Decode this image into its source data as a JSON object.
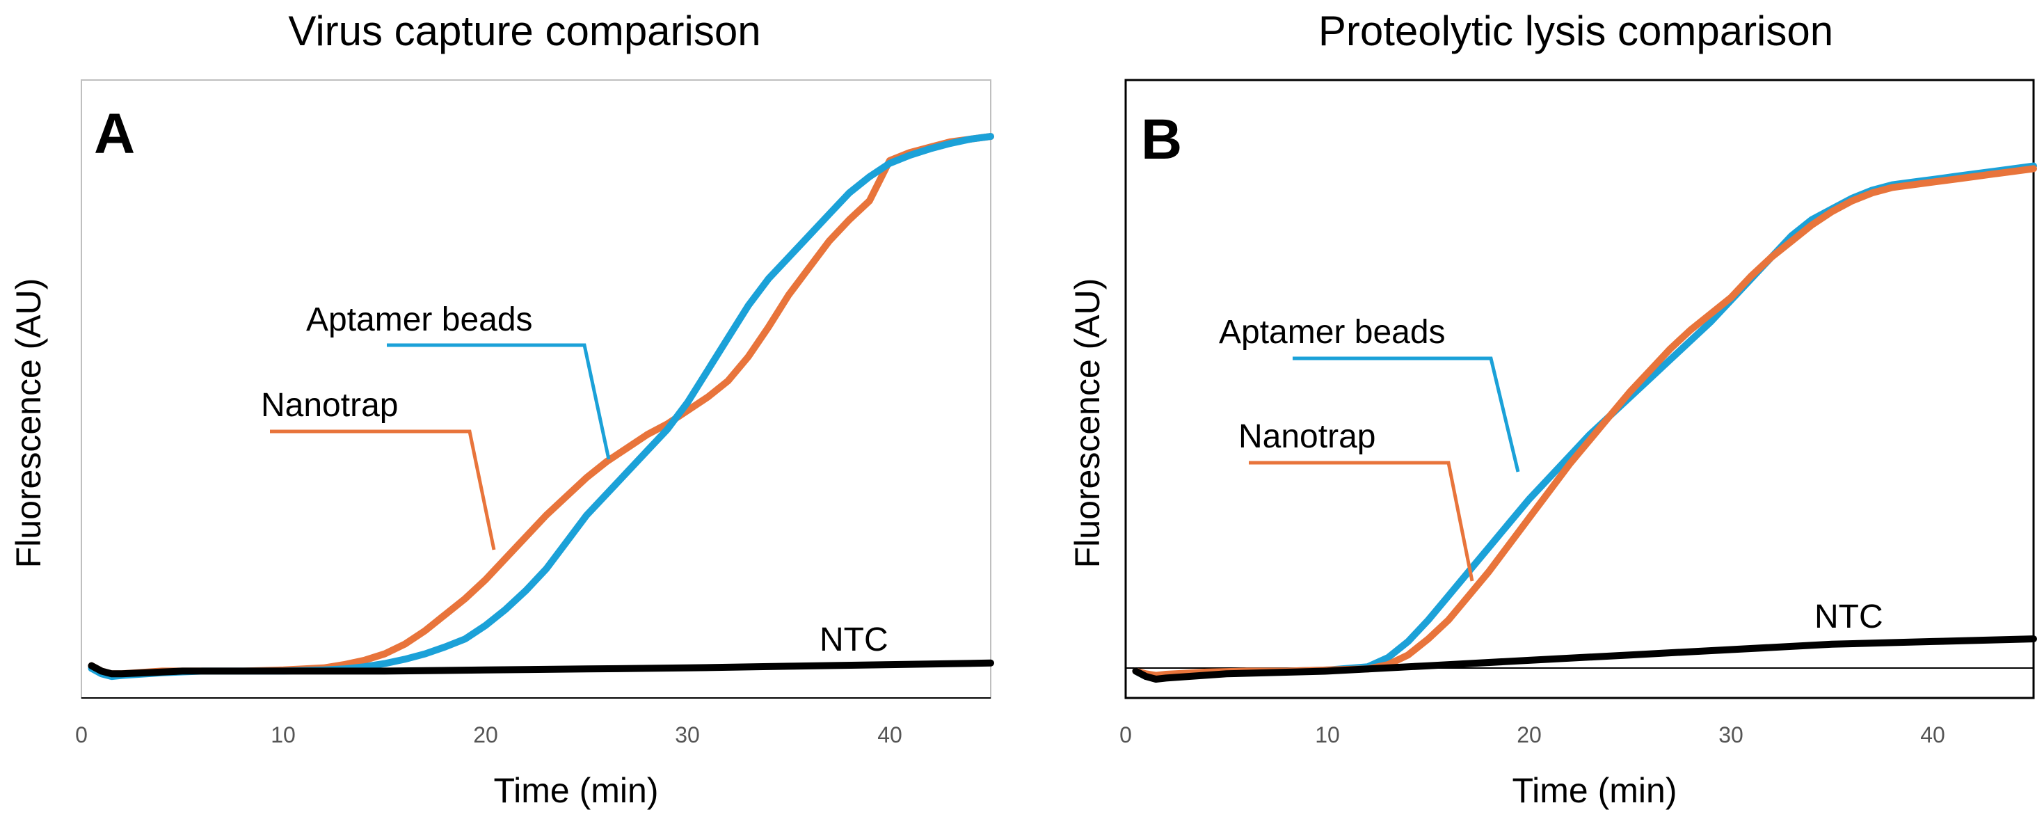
{
  "chart_data": [
    {
      "type": "line",
      "panel_label": "A",
      "title": "Virus capture comparison",
      "xlabel": "Time (min)",
      "ylabel": "Fluorescence (AU)",
      "xlim": [
        0,
        45
      ],
      "ylim": [
        -0.05,
        1.1
      ],
      "xticks": [
        0,
        10,
        20,
        30,
        40
      ],
      "xtick_labels": [
        "0",
        "10",
        "20",
        "30",
        "40"
      ],
      "grid": false,
      "series": [
        {
          "name": "Nanotrap",
          "color": "#E8743B",
          "x": [
            0.5,
            1,
            1.5,
            2,
            4,
            6,
            8,
            10,
            12,
            13,
            14,
            15,
            16,
            17,
            18,
            19,
            20,
            21,
            22,
            23,
            24,
            25,
            26,
            27,
            28,
            29,
            30,
            31,
            32,
            33,
            34,
            35,
            36,
            37,
            38,
            39,
            40,
            41,
            42,
            43,
            44,
            45
          ],
          "y": [
            0.01,
            0.0,
            -0.005,
            -0.005,
            0.0,
            0.0,
            0.0,
            0.002,
            0.006,
            0.012,
            0.02,
            0.032,
            0.05,
            0.075,
            0.105,
            0.135,
            0.17,
            0.21,
            0.25,
            0.29,
            0.325,
            0.36,
            0.39,
            0.415,
            0.44,
            0.46,
            0.485,
            0.51,
            0.54,
            0.585,
            0.64,
            0.7,
            0.75,
            0.8,
            0.84,
            0.875,
            0.95,
            0.965,
            0.975,
            0.985,
            0.99,
            0.995
          ]
        },
        {
          "name": "Aptamer beads",
          "color": "#1BA1D8",
          "x": [
            0.5,
            1,
            1.5,
            2,
            4,
            6,
            8,
            10,
            12,
            13,
            14,
            15,
            16,
            17,
            18,
            19,
            20,
            21,
            22,
            23,
            24,
            25,
            26,
            27,
            28,
            29,
            30,
            31,
            32,
            33,
            34,
            35,
            36,
            37,
            38,
            39,
            40,
            41,
            42,
            43,
            44,
            45
          ],
          "y": [
            0.005,
            -0.005,
            -0.01,
            -0.008,
            -0.003,
            0.0,
            0.0,
            0.0,
            0.002,
            0.004,
            0.008,
            0.014,
            0.022,
            0.032,
            0.045,
            0.06,
            0.085,
            0.115,
            0.15,
            0.19,
            0.24,
            0.29,
            0.33,
            0.37,
            0.41,
            0.45,
            0.5,
            0.56,
            0.62,
            0.68,
            0.73,
            0.77,
            0.81,
            0.85,
            0.89,
            0.92,
            0.945,
            0.96,
            0.972,
            0.982,
            0.99,
            0.995
          ]
        },
        {
          "name": "NTC",
          "color": "#000000",
          "x": [
            0.5,
            1,
            1.5,
            2,
            5,
            10,
            15,
            20,
            25,
            30,
            35,
            40,
            45
          ],
          "y": [
            0.01,
            0.0,
            -0.005,
            -0.005,
            0.0,
            0.0,
            0.0,
            0.002,
            0.004,
            0.006,
            0.009,
            0.012,
            0.015
          ]
        }
      ]
    },
    {
      "type": "line",
      "panel_label": "B",
      "title": "Proteolytic lysis comparison",
      "xlabel": "Time (min)",
      "ylabel": "Fluorescence (AU)",
      "xlim": [
        0,
        45
      ],
      "ylim": [
        -0.05,
        1.1
      ],
      "xticks": [
        0,
        10,
        20,
        30,
        40
      ],
      "xtick_labels": [
        "0",
        "10",
        "20",
        "30",
        "40"
      ],
      "grid": false,
      "series": [
        {
          "name": "Aptamer beads",
          "color": "#1BA1D8",
          "x": [
            0.5,
            1,
            1.5,
            2,
            4,
            6,
            8,
            10,
            12,
            13,
            14,
            15,
            16,
            17,
            18,
            19,
            20,
            21,
            22,
            23,
            24,
            25,
            26,
            27,
            28,
            29,
            30,
            31,
            32,
            33,
            34,
            35,
            36,
            37,
            38,
            39,
            40,
            41,
            42,
            43,
            44,
            45
          ],
          "y": [
            0.0,
            -0.01,
            -0.01,
            -0.008,
            -0.003,
            0.0,
            0.0,
            0.002,
            0.008,
            0.025,
            0.055,
            0.095,
            0.14,
            0.185,
            0.23,
            0.275,
            0.32,
            0.36,
            0.4,
            0.44,
            0.475,
            0.51,
            0.545,
            0.58,
            0.615,
            0.65,
            0.69,
            0.73,
            0.77,
            0.81,
            0.84,
            0.86,
            0.88,
            0.895,
            0.905,
            0.91,
            0.915,
            0.92,
            0.925,
            0.93,
            0.935,
            0.94
          ]
        },
        {
          "name": "Nanotrap",
          "color": "#E8743B",
          "x": [
            0.5,
            1,
            1.5,
            2,
            4,
            6,
            8,
            10,
            12,
            13,
            14,
            15,
            16,
            17,
            18,
            19,
            20,
            21,
            22,
            23,
            24,
            25,
            26,
            27,
            28,
            29,
            30,
            31,
            32,
            33,
            34,
            35,
            36,
            37,
            38,
            39,
            40,
            41,
            42,
            43,
            44,
            45
          ],
          "y": [
            0.0,
            -0.005,
            -0.008,
            -0.006,
            -0.002,
            0.0,
            0.0,
            0.002,
            0.004,
            0.012,
            0.03,
            0.06,
            0.095,
            0.14,
            0.185,
            0.235,
            0.285,
            0.335,
            0.385,
            0.43,
            0.475,
            0.52,
            0.56,
            0.6,
            0.635,
            0.665,
            0.695,
            0.735,
            0.77,
            0.8,
            0.83,
            0.855,
            0.875,
            0.89,
            0.9,
            0.905,
            0.91,
            0.915,
            0.92,
            0.925,
            0.93,
            0.935
          ]
        },
        {
          "name": "NTC",
          "color": "#000000",
          "x": [
            0.5,
            1,
            1.5,
            2,
            5,
            10,
            15,
            20,
            25,
            30,
            35,
            40,
            45
          ],
          "y": [
            0.0,
            -0.01,
            -0.015,
            -0.013,
            -0.005,
            0.0,
            0.01,
            0.02,
            0.03,
            0.04,
            0.05,
            0.055,
            0.06
          ]
        }
      ]
    }
  ]
}
